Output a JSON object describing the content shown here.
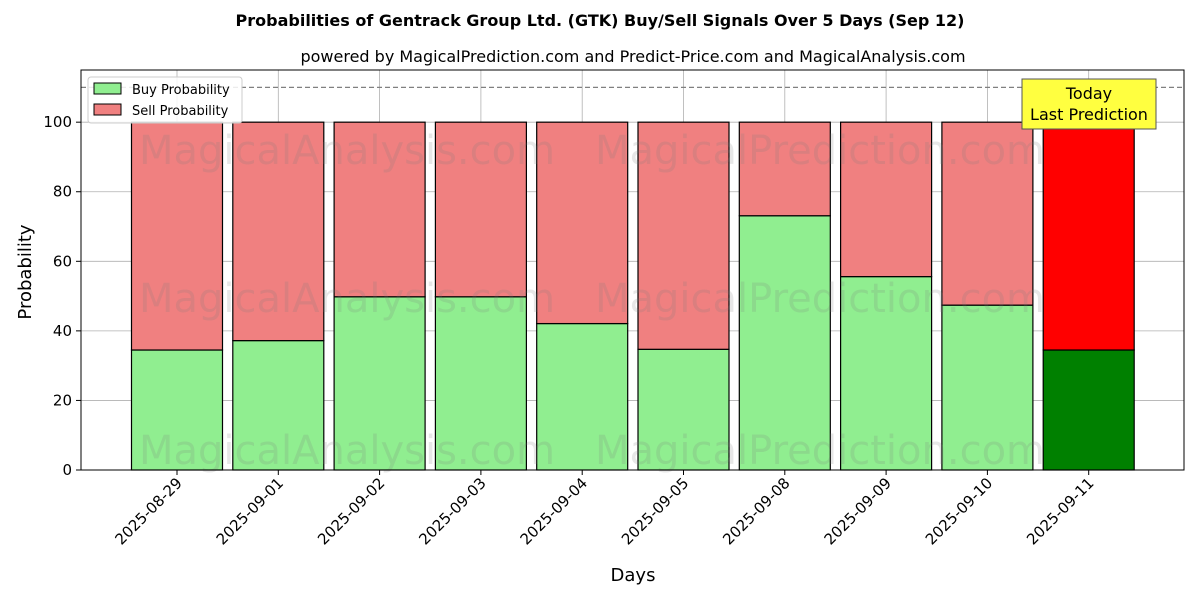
{
  "chart_data": {
    "type": "bar",
    "stacked": true,
    "title": "Probabilities of Gentrack Group Ltd. (GTK) Buy/Sell Signals Over 5 Days (Sep 12)",
    "subtitle": "powered by MagicalPrediction.com and Predict-Price.com and MagicalAnalysis.com",
    "xlabel": "Days",
    "ylabel": "Probability",
    "ylim": [
      0,
      115
    ],
    "yticks": [
      0,
      20,
      40,
      60,
      80,
      100
    ],
    "grid": true,
    "reference_line": 110,
    "categories": [
      "2025-08-29",
      "2025-09-01",
      "2025-09-02",
      "2025-09-03",
      "2025-09-04",
      "2025-09-05",
      "2025-09-08",
      "2025-09-09",
      "2025-09-10",
      "2025-09-11"
    ],
    "series": [
      {
        "name": "Buy Probability",
        "values": [
          34.5,
          37.2,
          49.8,
          49.8,
          42.1,
          34.7,
          73.1,
          55.6,
          47.4,
          34.5
        ]
      },
      {
        "name": "Sell Probability",
        "values": [
          65.5,
          62.8,
          50.2,
          50.2,
          57.9,
          65.3,
          26.9,
          44.4,
          52.6,
          65.5
        ]
      }
    ],
    "legend_position": "top-left",
    "annotation": {
      "line1": "Today",
      "line2": "Last Prediction"
    },
    "watermarks": [
      "MagicalAnalysis.com",
      "MagicalPrediction.com"
    ]
  },
  "colors": {
    "buy": "#90ee90",
    "sell": "#f08080",
    "buy_today": "#008000",
    "sell_today": "#ff0000",
    "annotation_bg": "#ffff40",
    "grid": "#b0b0b0"
  }
}
